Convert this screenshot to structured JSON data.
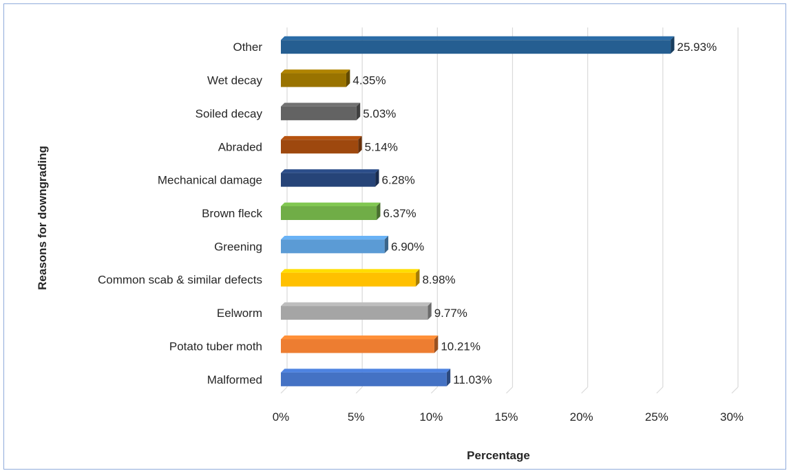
{
  "chart_data": {
    "type": "bar",
    "orientation": "horizontal",
    "title": "",
    "xlabel": "Percentage",
    "ylabel": "Reasons for downgrading",
    "xlim": [
      0,
      30
    ],
    "x_ticks": [
      "0%",
      "5%",
      "10%",
      "15%",
      "20%",
      "25%",
      "30%"
    ],
    "grid": "vertical",
    "categories": [
      "Malformed",
      "Potato tuber moth",
      "Eelworm",
      "Common scab & similar defects",
      "Greening",
      "Brown fleck",
      "Mechanical damage",
      "Abraded",
      "Soiled decay",
      "Wet decay",
      "Other"
    ],
    "values": [
      11.03,
      10.21,
      9.77,
      8.98,
      6.9,
      6.37,
      6.28,
      5.14,
      5.03,
      4.35,
      25.93
    ],
    "data_labels": [
      "11.03%",
      "10.21%",
      "9.77%",
      "8.98%",
      "6.90%",
      "6.37%",
      "6.28%",
      "5.14%",
      "5.03%",
      "4.35%",
      "25.93%"
    ],
    "colors": [
      "#4472c4",
      "#ed7d31",
      "#a5a5a5",
      "#ffc000",
      "#5b9bd5",
      "#70ad47",
      "#264478",
      "#9e480e",
      "#636363",
      "#997300",
      "#255e91"
    ]
  }
}
